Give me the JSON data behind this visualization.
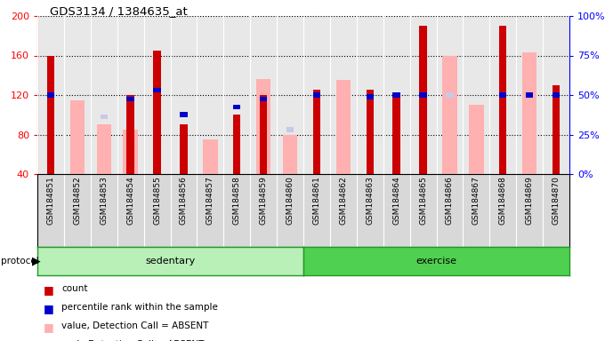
{
  "title": "GDS3134 / 1384635_at",
  "samples": [
    "GSM184851",
    "GSM184852",
    "GSM184853",
    "GSM184854",
    "GSM184855",
    "GSM184856",
    "GSM184857",
    "GSM184858",
    "GSM184859",
    "GSM184860",
    "GSM184861",
    "GSM184862",
    "GSM184863",
    "GSM184864",
    "GSM184865",
    "GSM184866",
    "GSM184867",
    "GSM184868",
    "GSM184869",
    "GSM184870"
  ],
  "count": [
    160,
    0,
    0,
    120,
    165,
    90,
    0,
    100,
    120,
    0,
    125,
    0,
    125,
    120,
    190,
    0,
    0,
    190,
    0,
    130
  ],
  "rank_val": [
    120,
    0,
    0,
    116,
    125,
    100,
    0,
    108,
    116,
    0,
    120,
    0,
    118,
    120,
    120,
    0,
    0,
    120,
    120,
    120
  ],
  "value_absent": [
    0,
    115,
    90,
    85,
    0,
    0,
    75,
    0,
    136,
    80,
    0,
    135,
    0,
    0,
    0,
    160,
    110,
    0,
    163,
    0
  ],
  "rank_absent": [
    0,
    0,
    98,
    0,
    0,
    87,
    0,
    0,
    0,
    85,
    0,
    0,
    0,
    0,
    0,
    120,
    0,
    0,
    120,
    0
  ],
  "ymin": 40,
  "ymax": 200,
  "yticks_left": [
    40,
    80,
    120,
    160,
    200
  ],
  "yticks_right": [
    0,
    25,
    50,
    75,
    100
  ],
  "bar_color_count": "#cc0000",
  "bar_color_rank": "#0000cc",
  "bar_color_value_absent": "#ffb0b0",
  "bar_color_rank_absent": "#c8c8e8",
  "plot_bg": "#e8e8e8",
  "label_bg": "#d8d8d8",
  "protocol_bg_light": "#b8f0b8",
  "protocol_bg_dark": "#50d050",
  "protocol_border": "#229922",
  "white": "#ffffff"
}
